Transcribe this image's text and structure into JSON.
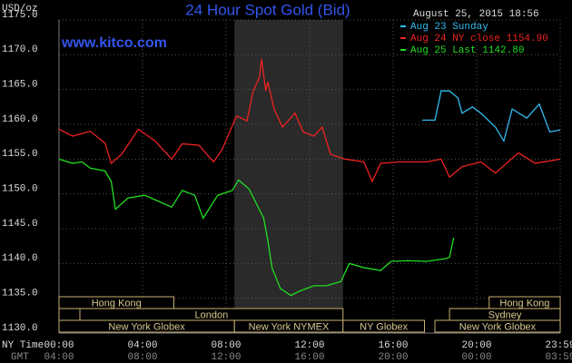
{
  "chart_data": {
    "type": "line",
    "title": "24 Hour Spot Gold (Bid)",
    "subtitle": "www.kitco.com",
    "y_label": "USD/oz",
    "timestamp": "August 25, 2015 18:56",
    "x_row_label": "NY Time",
    "x2_row_label": "GMT",
    "xlim": [
      0,
      24
    ],
    "xticks": [
      {
        "value": 0,
        "label": "00:00"
      },
      {
        "value": 4,
        "label": "04:00"
      },
      {
        "value": 8,
        "label": "08:00"
      },
      {
        "value": 12,
        "label": "12:00"
      },
      {
        "value": 16,
        "label": "16:00"
      },
      {
        "value": 20,
        "label": "20:00"
      },
      {
        "value": 24,
        "label": "23:59"
      }
    ],
    "x2_tick_labels": [
      "04:00",
      "08:00",
      "12:00",
      "16:00",
      "20:00",
      "00:00",
      "03:59"
    ],
    "ylim": [
      1130,
      1175
    ],
    "yticks": [
      {
        "value": 1130,
        "label": "1130.0"
      },
      {
        "value": 1135,
        "label": "1135.0"
      },
      {
        "value": 1140,
        "label": "1140.0"
      },
      {
        "value": 1145,
        "label": "1145.0"
      },
      {
        "value": 1150,
        "label": "1150.0"
      },
      {
        "value": 1155,
        "label": "1155.0"
      },
      {
        "value": 1160,
        "label": "1160.0"
      },
      {
        "value": 1165,
        "label": "1165.0"
      },
      {
        "value": 1170,
        "label": "1170.0"
      },
      {
        "value": 1175,
        "label": "1175.0"
      }
    ],
    "grid": true,
    "legend": "top-right",
    "series": [
      {
        "name": "Aug 23 Sunday",
        "color": "#33bbee",
        "x": [
          17.4,
          18,
          18.3,
          18.7,
          19.1,
          19.3,
          19.8,
          20.2,
          20.9,
          21.3,
          21.7,
          22.4,
          23,
          23.5,
          24
        ],
        "values": [
          1160.6,
          1160.6,
          1164.8,
          1164.8,
          1163.8,
          1161.6,
          1162.5,
          1161.6,
          1159.6,
          1157.6,
          1162.2,
          1160.9,
          1162.9,
          1158.9,
          1159.2
        ]
      },
      {
        "name": "Aug 24 NY close 1154.90",
        "color": "#ee2222",
        "x": [
          0,
          0.65,
          1.5,
          2.2,
          2.5,
          3,
          3.8,
          4.6,
          5.4,
          5.9,
          6.7,
          7.4,
          7.8,
          8.5,
          9,
          9.3,
          9.6,
          9.7,
          9.9,
          10,
          10.3,
          10.7,
          11.3,
          11.7,
          12.2,
          12.6,
          13,
          13.7,
          14.6,
          15,
          15.4,
          16.3,
          17.6,
          18.3,
          18.7,
          19.3,
          20.2,
          20.9,
          22,
          22.8,
          24
        ],
        "values": [
          1159.3,
          1158.3,
          1159,
          1157.3,
          1154.4,
          1155.7,
          1159.3,
          1157.6,
          1155,
          1157.2,
          1157,
          1154.6,
          1156.3,
          1161.2,
          1160.5,
          1164.8,
          1166.8,
          1169.4,
          1164.8,
          1166.1,
          1162.2,
          1159.6,
          1161.6,
          1158.9,
          1158.3,
          1159.6,
          1155.7,
          1155,
          1154.6,
          1151.8,
          1154.4,
          1154.6,
          1154.6,
          1155,
          1152.4,
          1153.9,
          1154.6,
          1153,
          1155.9,
          1154.4,
          1155
        ]
      },
      {
        "name": "Aug 25 Last 1142.80",
        "color": "#22dd22",
        "x": [
          0,
          0.65,
          1.1,
          1.5,
          2.2,
          2.5,
          2.7,
          3.3,
          4.1,
          4.8,
          5.4,
          5.9,
          6.5,
          6.9,
          7.6,
          8.3,
          8.6,
          9.1,
          9.8,
          10,
          10.2,
          10.6,
          11.1,
          11.5,
          12.2,
          12.8,
          13.5,
          13.9,
          14.6,
          15.4,
          15.9,
          16.7,
          17.6,
          18.5,
          18.7,
          18.9
        ],
        "values": [
          1155,
          1154.4,
          1154.6,
          1153.7,
          1153.3,
          1151.8,
          1147.8,
          1149.4,
          1149.8,
          1148.9,
          1148.1,
          1150.5,
          1149.8,
          1146.5,
          1149.8,
          1150.5,
          1152,
          1150.7,
          1146.5,
          1143.3,
          1139.4,
          1136.4,
          1135.4,
          1136,
          1136.8,
          1136.8,
          1137.4,
          1140,
          1139.4,
          1139,
          1140.3,
          1140.4,
          1140.3,
          1140.7,
          1140.9,
          1143.7
        ]
      }
    ],
    "session_rows": [
      [
        {
          "label": "Hong Kong",
          "start": 0,
          "end": 5.5
        },
        {
          "label": "Hong Kong",
          "start": 20.6,
          "end": 24
        }
      ],
      [
        {
          "start": 0,
          "end": 1
        },
        {
          "label": "London",
          "start": 1,
          "end": 13.6
        },
        {
          "label": "Sydney",
          "start": 18.7,
          "end": 24
        }
      ],
      [
        {
          "label": "New York Globex",
          "start": 0,
          "end": 8.4
        },
        {
          "label": "New York NYMEX",
          "start": 8.4,
          "end": 13.6,
          "shade": true
        },
        {
          "label": "NY Globex",
          "start": 13.6,
          "end": 17.5
        },
        {
          "label": "New York Globex",
          "start": 18,
          "end": 24
        }
      ]
    ]
  }
}
